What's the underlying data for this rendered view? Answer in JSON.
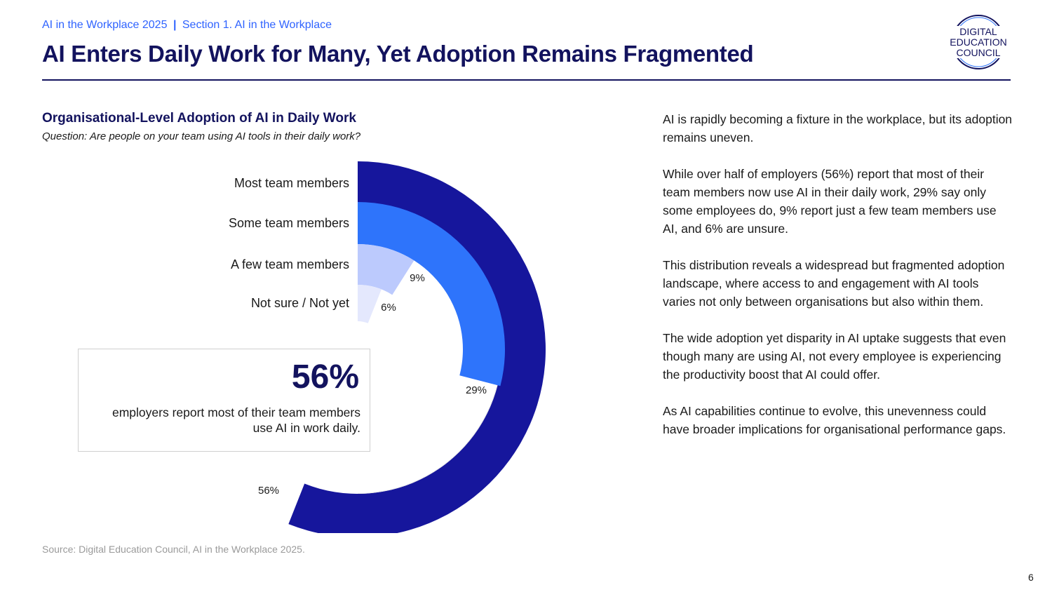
{
  "header": {
    "breadcrumb_left": "AI in the Workplace 2025",
    "breadcrumb_sep": "|",
    "breadcrumb_right": "Section 1. AI in the Workplace",
    "title": "AI Enters Daily Work for Many, Yet Adoption Remains Fragmented",
    "logo_lines": [
      "DIGITAL",
      "EDUCATION",
      "COUNCIL"
    ]
  },
  "chart_data": {
    "type": "radial-bar",
    "title": "Organisational-Level Adoption of AI in Daily Work",
    "subtitle": "Question: Are people on your team using AI tools in their daily work?",
    "categories": [
      "Most team members",
      "Some team members",
      "A few team members",
      "Not sure / Not yet"
    ],
    "values": [
      56,
      29,
      9,
      6
    ],
    "value_labels": [
      "56%",
      "29%",
      "9%",
      "6%"
    ],
    "unit": "%",
    "colors": [
      "#16169c",
      "#2e74fb",
      "#bccafd",
      "#e4e8fd"
    ],
    "track_color": "#ebebeb",
    "max": 100
  },
  "callout": {
    "value": "56%",
    "caption": "employers report most of their team members use AI in work daily."
  },
  "body": {
    "paragraphs": [
      "AI is rapidly becoming a fixture in the workplace, but its adoption remains uneven.",
      "While over half of employers (56%) report that most of their team members now use AI in their daily work, 29% say only some employees do, 9% report just a few team members use AI, and 6% are unsure.",
      "This distribution reveals a widespread but fragmented adoption landscape, where access to and engagement with AI tools varies not only between organisations but also within them.",
      "The wide adoption yet disparity in AI uptake suggests that even though many are using AI, not every employee is experiencing the productivity boost that AI could offer.",
      "As AI capabilities continue to evolve, this unevenness could have broader implications for organisational performance gaps."
    ]
  },
  "footer": {
    "source": "Source: Digital Education Council, AI in the Workplace 2025.",
    "page_number": "6"
  }
}
